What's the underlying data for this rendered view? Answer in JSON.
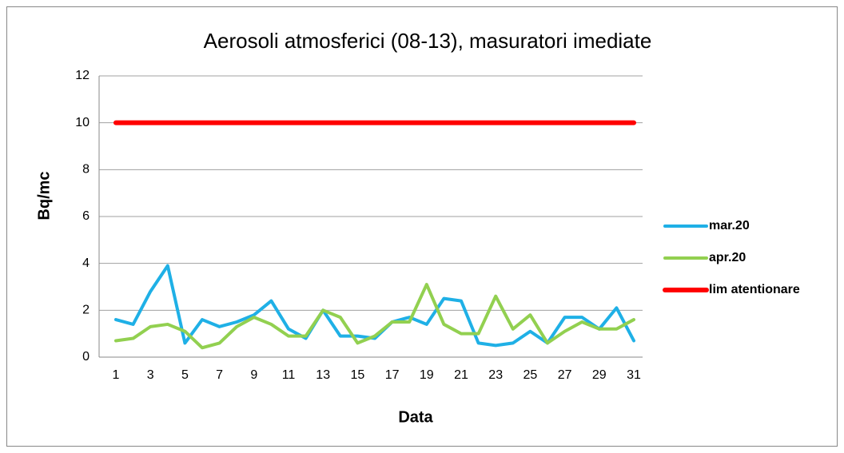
{
  "chart_data": {
    "type": "line",
    "title": "Aerosoli atmosferici (08-13), masuratori imediate",
    "x_label": "Data",
    "y_label": "Bq/mc",
    "categories": [
      1,
      null,
      3,
      null,
      5,
      null,
      7,
      null,
      9,
      null,
      11,
      null,
      13,
      null,
      15,
      null,
      17,
      null,
      19,
      null,
      21,
      null,
      23,
      null,
      25,
      null,
      27,
      null,
      29,
      null,
      31
    ],
    "series": [
      {
        "name": "mar.20",
        "color": "#1fb0e6",
        "values": [
          1.6,
          1.4,
          2.8,
          3.9,
          0.6,
          1.6,
          1.3,
          1.5,
          1.8,
          2.4,
          1.2,
          0.8,
          2.0,
          0.9,
          0.9,
          0.8,
          1.5,
          1.7,
          1.4,
          2.5,
          2.4,
          0.6,
          0.5,
          0.6,
          1.1,
          0.6,
          1.7,
          1.7,
          1.2,
          2.1,
          0.7
        ]
      },
      {
        "name": "apr.20",
        "color": "#92d050",
        "values": [
          0.7,
          0.8,
          1.3,
          1.4,
          1.1,
          0.4,
          0.6,
          1.3,
          1.7,
          1.4,
          0.9,
          0.9,
          2.0,
          1.7,
          0.6,
          0.9,
          1.5,
          1.5,
          3.1,
          1.4,
          1.0,
          1.0,
          2.6,
          1.2,
          1.8,
          0.6,
          1.1,
          1.5,
          1.2,
          1.2,
          1.6
        ]
      },
      {
        "name": "lim atentionare",
        "color": "#ff0000",
        "values": [
          10,
          10,
          10,
          10,
          10,
          10,
          10,
          10,
          10,
          10,
          10,
          10,
          10,
          10,
          10,
          10,
          10,
          10,
          10,
          10,
          10,
          10,
          10,
          10,
          10,
          10,
          10,
          10,
          10,
          10,
          10
        ]
      }
    ],
    "ylim": [
      0,
      12
    ],
    "yticks": [
      0,
      2,
      4,
      6,
      8,
      10,
      12
    ],
    "grid": true,
    "legend": "right"
  }
}
